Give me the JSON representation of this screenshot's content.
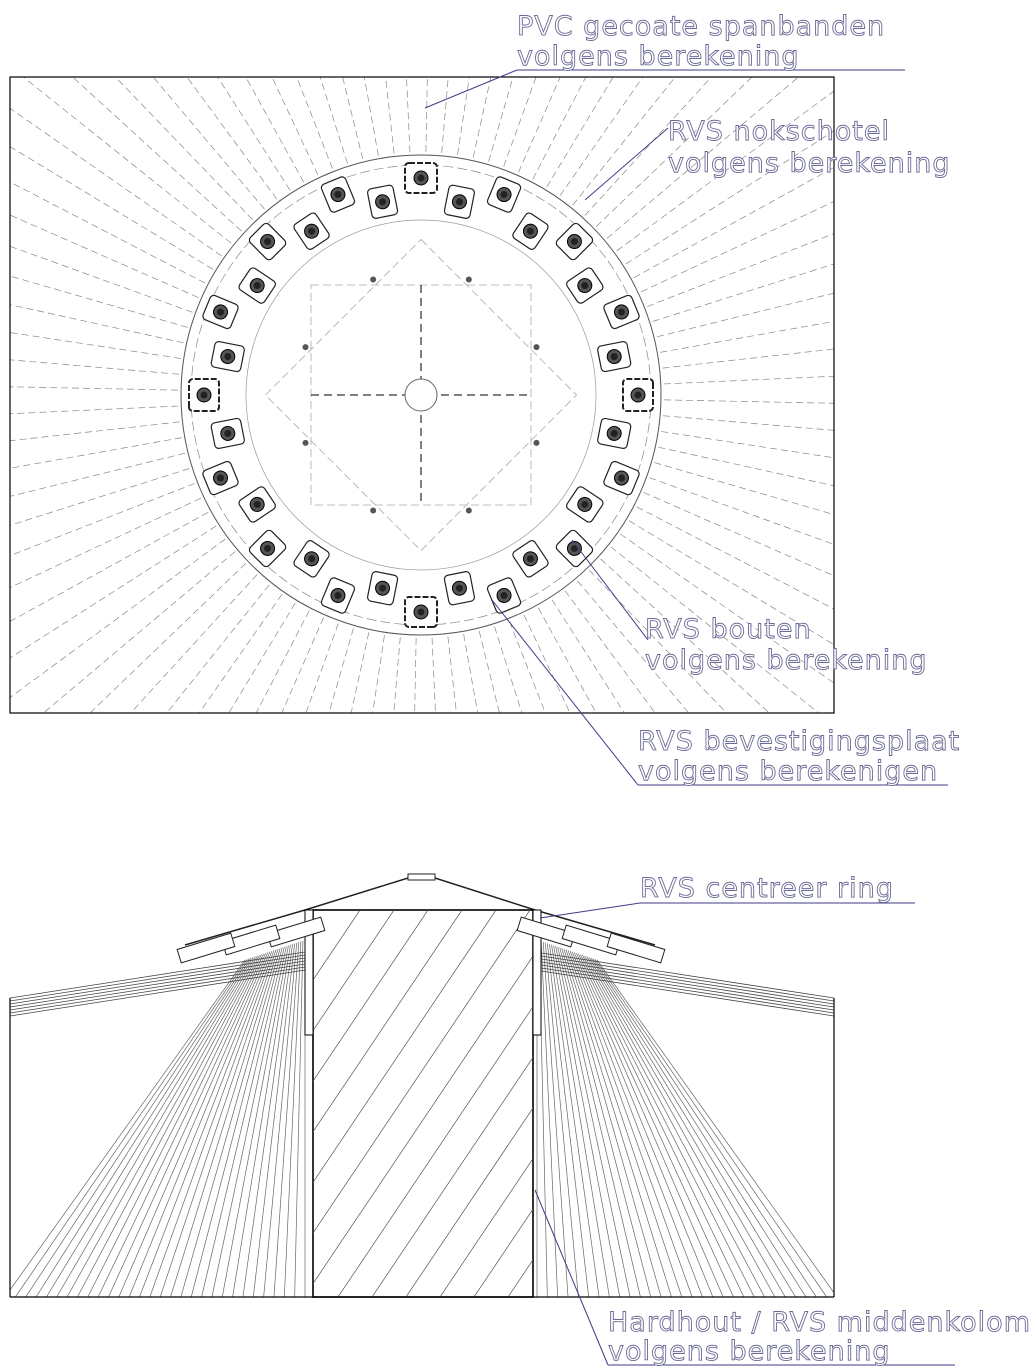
{
  "top_view": {
    "labels": [
      {
        "lines": [
          "PVC gecoate spanbanden",
          "volgens berekening"
        ]
      },
      {
        "lines": [
          "RVS nokschotel",
          "volgens berekening"
        ]
      },
      {
        "lines": [
          "RVS bouten",
          "volgens berekening"
        ]
      },
      {
        "lines": [
          "RVS bevestigingsplaat",
          "volgens berekenigen"
        ]
      }
    ]
  },
  "section_view": {
    "labels": [
      {
        "lines": [
          "RVS centreer ring"
        ]
      },
      {
        "lines": [
          "Hardhout / RVS middenkolom",
          "volgens berekening"
        ]
      }
    ]
  }
}
